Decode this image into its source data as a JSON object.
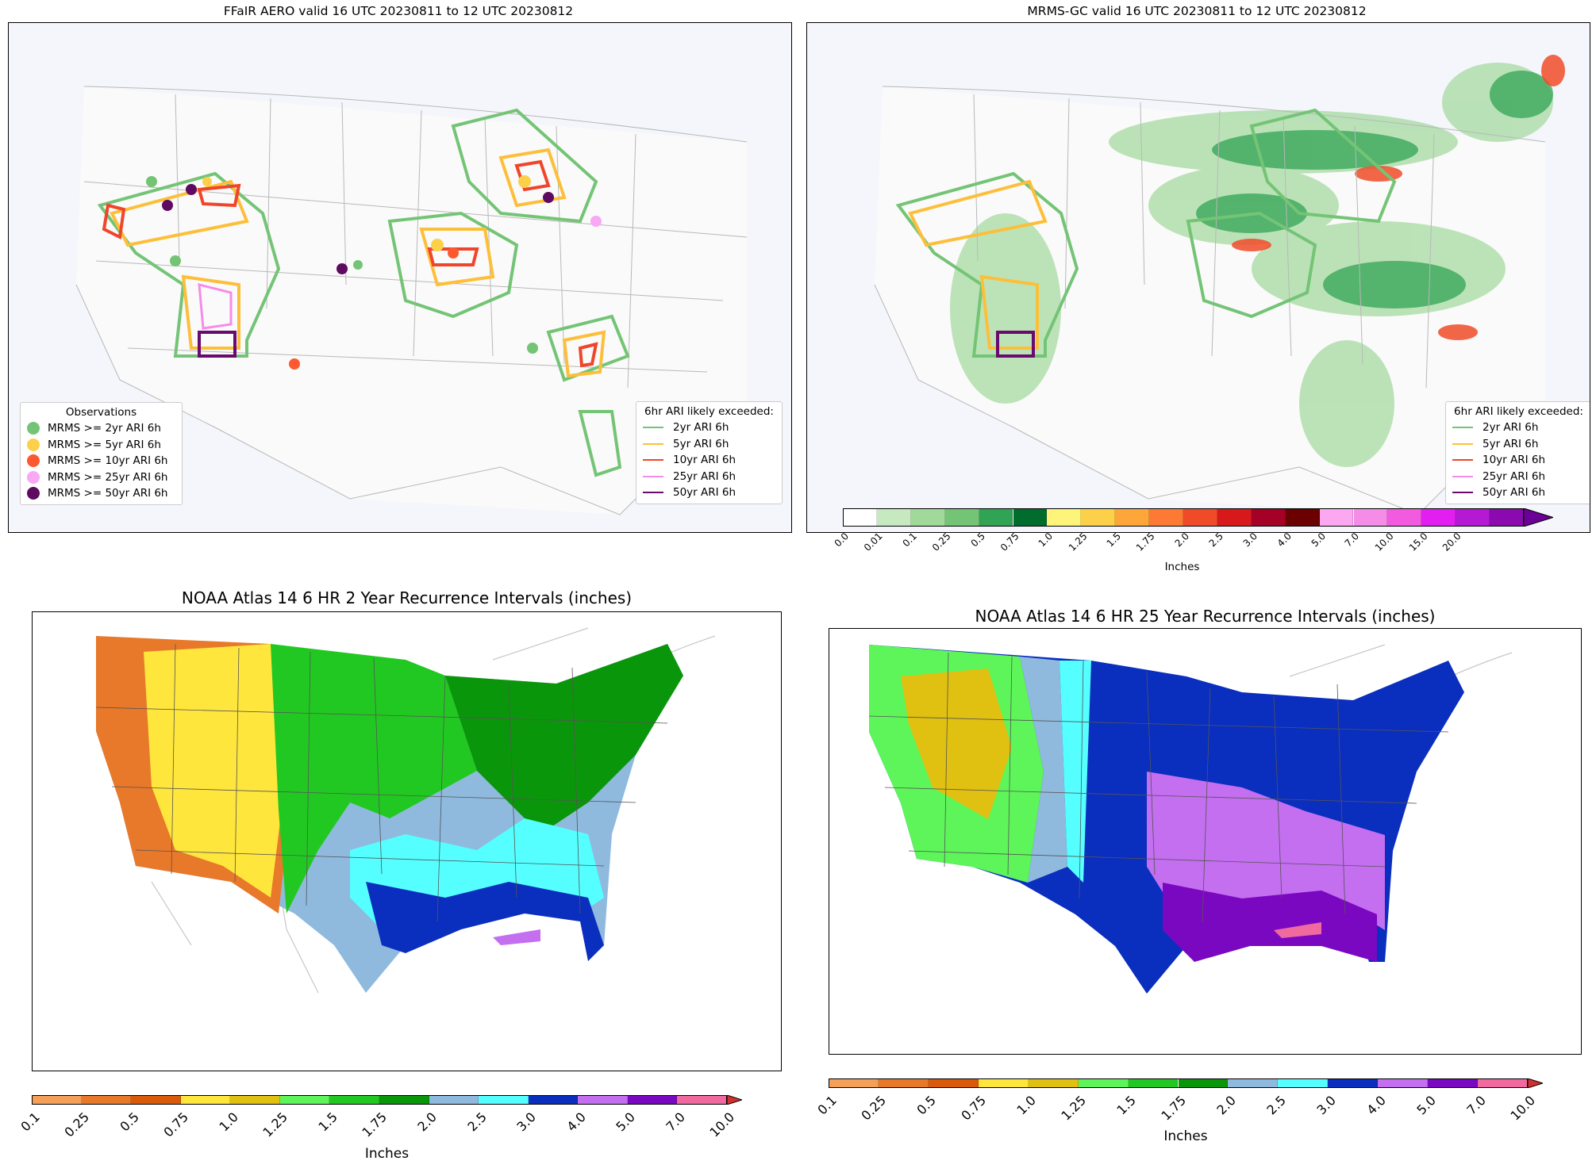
{
  "panels": {
    "ffair": {
      "title": "FFaIR AERO valid 16 UTC 20230811 to 12 UTC 20230812",
      "obs_legend": {
        "title": "Observations",
        "items": [
          {
            "label": "MRMS >= 2yr ARI 6h",
            "color": "#74c476"
          },
          {
            "label": "MRMS >= 5yr ARI 6h",
            "color": "#fdd049"
          },
          {
            "label": "MRMS >= 10yr ARI 6h",
            "color": "#fc5a2e"
          },
          {
            "label": "MRMS >= 25yr ARI 6h",
            "color": "#f9a8f4"
          },
          {
            "label": "MRMS >= 50yr ARI 6h",
            "color": "#5e0a60"
          }
        ]
      },
      "ari_legend": {
        "title": "6hr ARI likely exceeded:",
        "items": [
          {
            "label": "2yr ARI 6h",
            "color": "#74c476"
          },
          {
            "label": "5yr ARI 6h",
            "color": "#fdbf3a"
          },
          {
            "label": "10yr ARI 6h",
            "color": "#f0452a"
          },
          {
            "label": "25yr ARI 6h",
            "color": "#f58ce8"
          },
          {
            "label": "50yr ARI 6h",
            "color": "#6a0a6e"
          }
        ]
      }
    },
    "mrms": {
      "title": "MRMS-GC valid 16 UTC 20230811 to 12 UTC 20230812",
      "ari_legend": {
        "title": "6hr ARI likely exceeded:",
        "items": [
          {
            "label": "2yr ARI 6h",
            "color": "#74c476"
          },
          {
            "label": "5yr ARI 6h",
            "color": "#fdbf3a"
          },
          {
            "label": "10yr ARI 6h",
            "color": "#f0452a"
          },
          {
            "label": "25yr ARI 6h",
            "color": "#f58ce8"
          },
          {
            "label": "50yr ARI 6h",
            "color": "#6a0a6e"
          }
        ]
      },
      "colorbar": {
        "label": "Inches",
        "ticks": [
          "0.0",
          "0.01",
          "0.1",
          "0.25",
          "0.5",
          "0.75",
          "1.0",
          "1.25",
          "1.5",
          "1.75",
          "2.0",
          "2.5",
          "3.0",
          "4.0",
          "5.0",
          "7.0",
          "10.0",
          "15.0",
          "20.0"
        ],
        "colors": [
          "#ffffff",
          "#c7e9c0",
          "#a1d99b",
          "#74c476",
          "#31a354",
          "#006d2c",
          "#fff47a",
          "#fdd049",
          "#fda63a",
          "#fc7a34",
          "#f04b28",
          "#d7191c",
          "#a50026",
          "#6b0000",
          "#fba8f0",
          "#f58ce8",
          "#f25ae0",
          "#e21ef0",
          "#b519d4",
          "#8a0ab0"
        ],
        "extend_color": "#6a0096"
      }
    },
    "atlas2": {
      "title": "NOAA Atlas 14 6 HR 2 Year Recurrence Intervals (inches)",
      "colorbar": {
        "label": "Inches",
        "ticks": [
          "0.1",
          "0.25",
          "0.5",
          "0.75",
          "1.0",
          "1.25",
          "1.5",
          "1.75",
          "2.0",
          "2.5",
          "3.0",
          "4.0",
          "5.0",
          "7.0",
          "10.0"
        ],
        "colors": [
          "#f5a05a",
          "#e8782a",
          "#d95a0a",
          "#ffe63c",
          "#e0c010",
          "#5ef55a",
          "#22c822",
          "#0a960a",
          "#8fbade",
          "#55ffff",
          "#0a2ebe",
          "#c46ef0",
          "#7a08c0",
          "#f06aa0"
        ],
        "extend_color": "#d32f2f"
      }
    },
    "atlas25": {
      "title": "NOAA Atlas 14 6 HR 25 Year Recurrence Intervals (inches)",
      "colorbar": {
        "label": "Inches",
        "ticks": [
          "0.1",
          "0.25",
          "0.5",
          "0.75",
          "1.0",
          "1.25",
          "1.5",
          "1.75",
          "2.0",
          "2.5",
          "3.0",
          "4.0",
          "5.0",
          "7.0",
          "10.0"
        ],
        "colors": [
          "#f5a05a",
          "#e8782a",
          "#d95a0a",
          "#ffe63c",
          "#e0c010",
          "#5ef55a",
          "#22c822",
          "#0a960a",
          "#8fbade",
          "#55ffff",
          "#0a2ebe",
          "#c46ef0",
          "#7a08c0",
          "#f06aa0"
        ],
        "extend_color": "#d32f2f"
      }
    }
  }
}
